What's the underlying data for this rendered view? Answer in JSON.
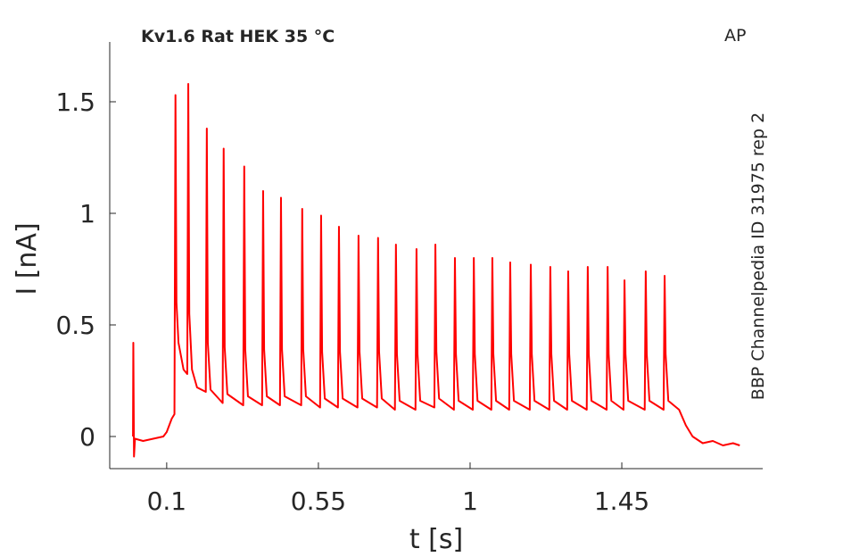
{
  "chart_data": {
    "type": "line",
    "title": "Kv1.6  Rat  HEK  35 °C",
    "annotation": "AP",
    "side_label": "BBP Channelpedia ID 31975 rep 2",
    "x_label": "t [s]",
    "y_label": "I [nA]",
    "xlim": [
      -0.069,
      1.868
    ],
    "ylim": [
      -0.144,
      1.768
    ],
    "xticks": [
      0.1,
      0.55,
      1,
      1.45
    ],
    "yticks": [
      0,
      0.5,
      1,
      1.5
    ],
    "series": [
      {
        "color": "#ff0000",
        "x": [
          0,
          0.001,
          0.003,
          0.006,
          0.03,
          0.06,
          0.09,
          0.1,
          0.115,
          0.123,
          0.126,
          0.129,
          0.135,
          0.15,
          0.161,
          0.164,
          0.167,
          0.175,
          0.19,
          0.216,
          0.219,
          0.222,
          0.23,
          0.266,
          0.269,
          0.272,
          0.28,
          0.327,
          0.33,
          0.333,
          0.341,
          0.383,
          0.386,
          0.389,
          0.397,
          0.436,
          0.439,
          0.442,
          0.45,
          0.499,
          0.502,
          0.505,
          0.513,
          0.555,
          0.558,
          0.561,
          0.569,
          0.608,
          0.611,
          0.614,
          0.622,
          0.666,
          0.669,
          0.672,
          0.68,
          0.724,
          0.727,
          0.73,
          0.738,
          0.777,
          0.78,
          0.783,
          0.791,
          0.838,
          0.841,
          0.844,
          0.852,
          0.894,
          0.897,
          0.9,
          0.908,
          0.952,
          0.955,
          0.958,
          0.966,
          1.008,
          1.011,
          1.014,
          1.022,
          1.063,
          1.066,
          1.069,
          1.077,
          1.116,
          1.119,
          1.122,
          1.13,
          1.177,
          1.18,
          1.183,
          1.191,
          1.235,
          1.238,
          1.241,
          1.249,
          1.288,
          1.291,
          1.294,
          1.302,
          1.346,
          1.349,
          1.352,
          1.36,
          1.405,
          1.408,
          1.411,
          1.419,
          1.455,
          1.458,
          1.461,
          1.469,
          1.518,
          1.521,
          1.524,
          1.532,
          1.574,
          1.577,
          1.58,
          1.588,
          1.62,
          1.64,
          1.66,
          1.69,
          1.72,
          1.75,
          1.78,
          1.8
        ],
        "values": [
          0,
          0.42,
          -0.09,
          -0.01,
          -0.02,
          -0.01,
          0.0,
          0.02,
          0.08,
          0.1,
          1.53,
          0.6,
          0.42,
          0.3,
          0.28,
          1.58,
          0.55,
          0.3,
          0.22,
          0.2,
          1.38,
          0.42,
          0.21,
          0.15,
          1.29,
          0.4,
          0.19,
          0.14,
          1.21,
          0.39,
          0.18,
          0.14,
          1.1,
          0.39,
          0.18,
          0.14,
          1.07,
          0.39,
          0.18,
          0.14,
          1.02,
          0.39,
          0.18,
          0.13,
          0.99,
          0.38,
          0.17,
          0.13,
          0.94,
          0.38,
          0.17,
          0.13,
          0.9,
          0.38,
          0.17,
          0.13,
          0.89,
          0.38,
          0.17,
          0.12,
          0.86,
          0.37,
          0.16,
          0.12,
          0.84,
          0.37,
          0.16,
          0.13,
          0.86,
          0.38,
          0.17,
          0.12,
          0.8,
          0.37,
          0.16,
          0.12,
          0.8,
          0.37,
          0.16,
          0.12,
          0.8,
          0.37,
          0.16,
          0.12,
          0.78,
          0.37,
          0.16,
          0.12,
          0.77,
          0.37,
          0.16,
          0.12,
          0.76,
          0.37,
          0.16,
          0.12,
          0.74,
          0.37,
          0.16,
          0.12,
          0.76,
          0.37,
          0.16,
          0.12,
          0.76,
          0.37,
          0.16,
          0.12,
          0.7,
          0.37,
          0.16,
          0.12,
          0.74,
          0.37,
          0.16,
          0.12,
          0.72,
          0.37,
          0.16,
          0.12,
          0.05,
          0.0,
          -0.03,
          -0.02,
          -0.04,
          -0.03,
          -0.04
        ]
      }
    ]
  }
}
